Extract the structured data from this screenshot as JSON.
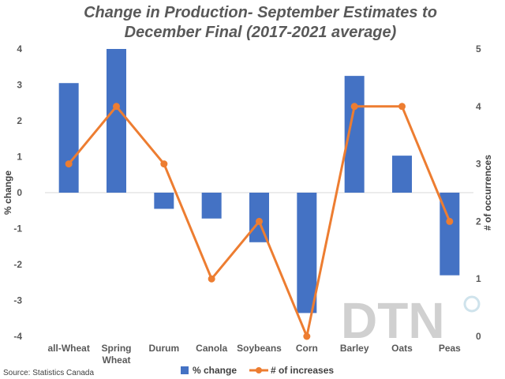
{
  "chart_data": {
    "type": "bar",
    "title_line1": "Change in Production- September Estimates to",
    "title_line2": "December Final (2017-2021 average)",
    "categories": [
      "all-Wheat",
      "Spring Wheat",
      "Durum",
      "Canola",
      "Soybeans",
      "Corn",
      "Barley",
      "Oats",
      "Peas"
    ],
    "category_lines": [
      [
        "all-Wheat"
      ],
      [
        "Spring",
        "Wheat"
      ],
      [
        "Durum"
      ],
      [
        "Canola"
      ],
      [
        "Soybeans"
      ],
      [
        "Corn"
      ],
      [
        "Barley"
      ],
      [
        "Oats"
      ],
      [
        "Peas"
      ]
    ],
    "series": [
      {
        "name": "% change",
        "type": "bar",
        "axis": "left",
        "color": "#4472c4",
        "values": [
          3.05,
          4.0,
          -0.45,
          -0.72,
          -1.38,
          -3.35,
          3.25,
          1.03,
          -2.3
        ]
      },
      {
        "name": "# of increases",
        "type": "line",
        "axis": "right",
        "color": "#ed7d31",
        "values": [
          3,
          4,
          3,
          1,
          2,
          0,
          4,
          4,
          2
        ]
      }
    ],
    "ylabel": "% change",
    "y2label": "# of occurrences",
    "ylim": [
      -4,
      4
    ],
    "y2lim": [
      0,
      5
    ],
    "yticks": [
      4,
      3,
      2,
      1,
      0,
      -1,
      -2,
      -3,
      -4
    ],
    "y2ticks": [
      5,
      4,
      3,
      2,
      1,
      0
    ],
    "grid": false,
    "legend_position": "bottom",
    "source": "Source: Statistics Canada",
    "logo_text": "DTN"
  }
}
